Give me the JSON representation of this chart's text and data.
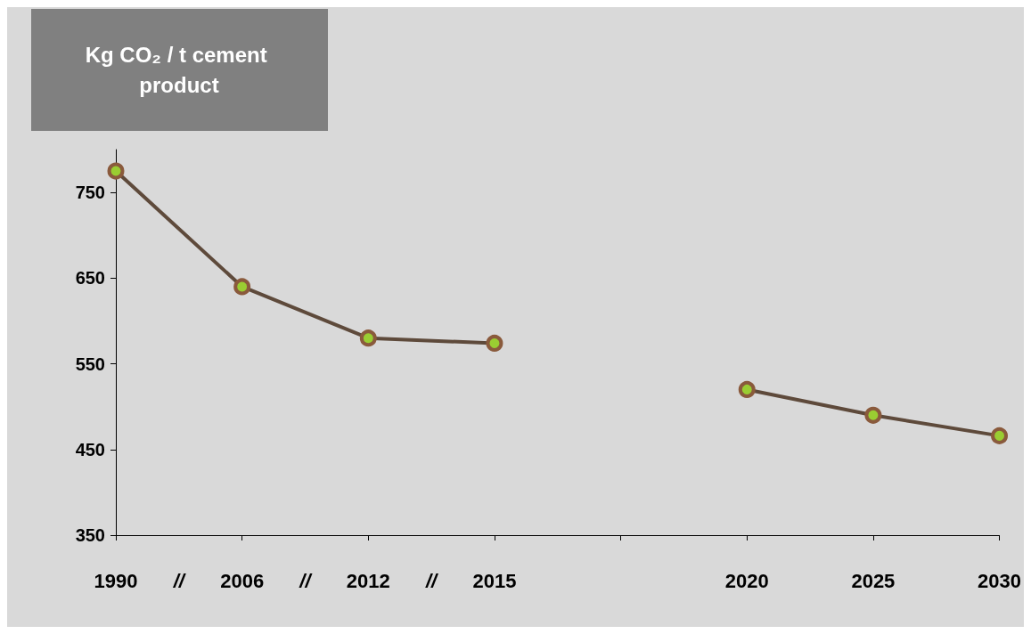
{
  "chart_data": {
    "type": "line",
    "ylabel": "Kg CO₂ / t cement product",
    "categories": [
      "1990",
      "2006",
      "2012",
      "2015",
      null,
      "2020",
      "2025",
      "2030"
    ],
    "series": [
      {
        "color": "#5e4a3b",
        "values": [
          775,
          640,
          580,
          574,
          null,
          520,
          490,
          466
        ]
      }
    ],
    "ylim": [
      350,
      800
    ],
    "yticks": [
      350,
      450,
      550,
      650,
      750
    ],
    "grid": false,
    "marker": "circle",
    "line_style": "solid",
    "annotations": [
      "//",
      "//",
      "//"
    ]
  }
}
